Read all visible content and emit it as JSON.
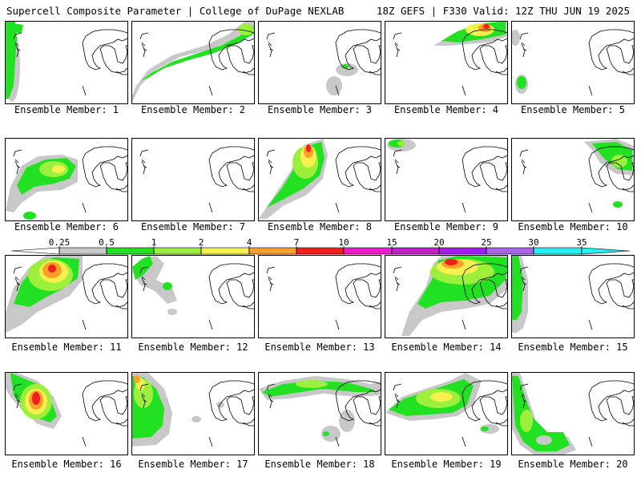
{
  "header": {
    "left": "Supercell Composite Parameter | College of DuPage NEXLAB",
    "right": "18Z GEFS | F330 Valid: 12Z THU JUN 19 2025"
  },
  "member_label_prefix": "Ensemble Member: ",
  "members": [
    1,
    2,
    3,
    4,
    5,
    6,
    7,
    8,
    9,
    10,
    11,
    12,
    13,
    14,
    15,
    16,
    17,
    18,
    19,
    20
  ],
  "colorbar": {
    "ticks": [
      "0.25",
      "0.5",
      "1",
      "2",
      "4",
      "7",
      "10",
      "15",
      "20",
      "25",
      "30",
      "35"
    ],
    "colors": [
      "#ffffff",
      "#c8c8c8",
      "#22e022",
      "#9cf03c",
      "#f5f050",
      "#fca028",
      "#f51e1e",
      "#f01ec8",
      "#c81ec8",
      "#a01ef0",
      "#aa64e6",
      "#28f0f0",
      "#28f0f0"
    ]
  },
  "map_colors": {
    "gray": "#c8c8c8",
    "green": "#22e022",
    "lightgreen": "#9cf03c",
    "yellow": "#f5f050",
    "orange": "#fca028",
    "red": "#f51e1e",
    "outline": "#000000"
  }
}
